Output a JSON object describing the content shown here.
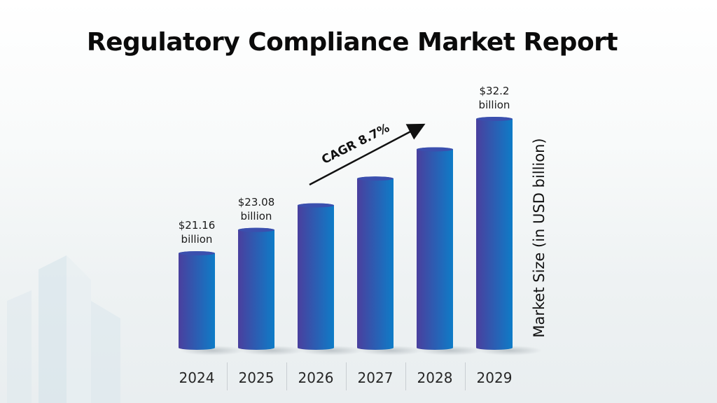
{
  "title": "Regulatory Compliance Market Report",
  "chart_data": {
    "type": "bar",
    "title": "Regulatory Compliance Market Report",
    "categories": [
      "2024",
      "2025",
      "2026",
      "2027",
      "2028",
      "2029"
    ],
    "values": [
      21.16,
      23.08,
      25.1,
      27.3,
      29.7,
      32.2
    ],
    "value_labels": [
      {
        "category": "2024",
        "amount": "$21.16",
        "unit": "billion"
      },
      {
        "category": "2025",
        "amount": "$23.08",
        "unit": "billion"
      },
      {
        "category": "2029",
        "amount": "$32.2",
        "unit": "billion"
      }
    ],
    "ylabel": "Market Size (in USD billion)",
    "xlabel": "",
    "ylim": [
      0,
      34
    ],
    "grid": false,
    "legend": "none",
    "annotation": {
      "text": "CAGR 8.7%",
      "type": "growth-arrow"
    },
    "bar_gradient": [
      "#4a3f9e",
      "#0e7cc7"
    ]
  }
}
